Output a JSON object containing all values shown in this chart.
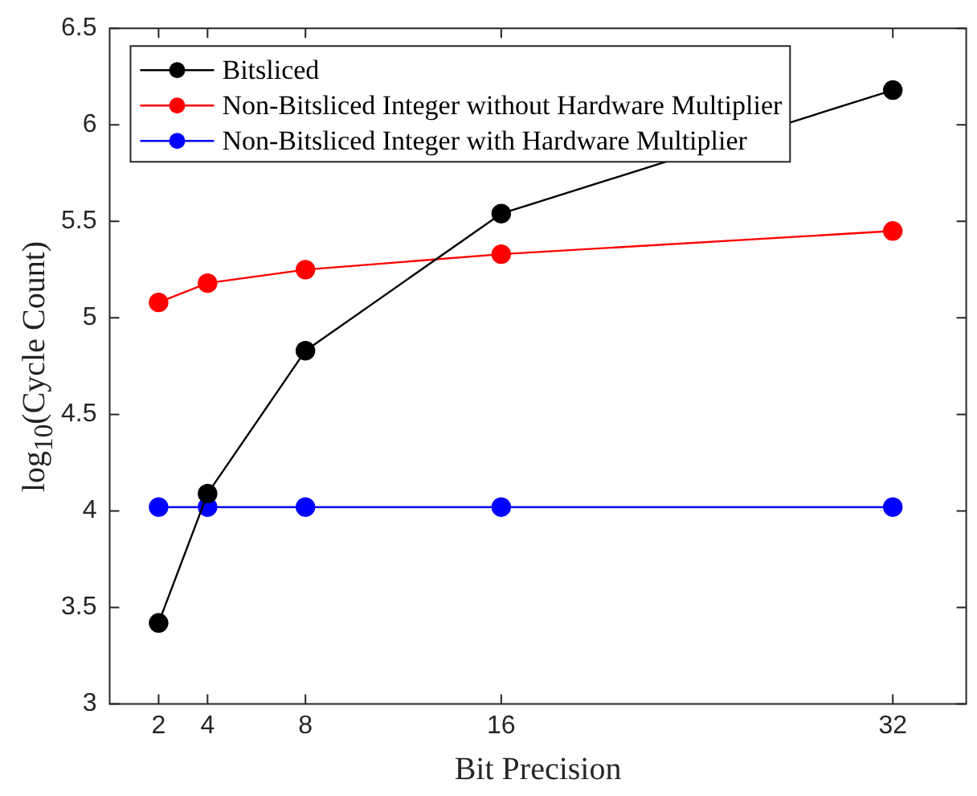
{
  "chart_data": {
    "type": "line",
    "xlabel": "Bit Precision",
    "ylabel": "log$_{10}$(Cycle Count)",
    "x": [
      2,
      4,
      8,
      16,
      32
    ],
    "series": [
      {
        "name": "Bitsliced",
        "color": "#000000",
        "values": [
          3.42,
          4.09,
          4.83,
          5.54,
          6.18
        ]
      },
      {
        "name": "Non-Bitsliced Integer without Hardware Multiplier",
        "color": "#ff0000",
        "values": [
          5.08,
          5.18,
          5.25,
          5.33,
          5.45
        ]
      },
      {
        "name": "Non-Bitsliced Integer with Hardware Multiplier",
        "color": "#0000ff",
        "values": [
          4.02,
          4.02,
          4.02,
          4.02,
          4.02
        ]
      }
    ],
    "xlim": [
      0,
      35
    ],
    "xticks": [
      2,
      4,
      8,
      16,
      32
    ],
    "ylim": [
      3,
      6.5
    ],
    "yticks": [
      3,
      3.5,
      4,
      4.5,
      5,
      5.5,
      6,
      6.5
    ],
    "legend": "top left",
    "marker": "circle",
    "line_style": "solid"
  }
}
